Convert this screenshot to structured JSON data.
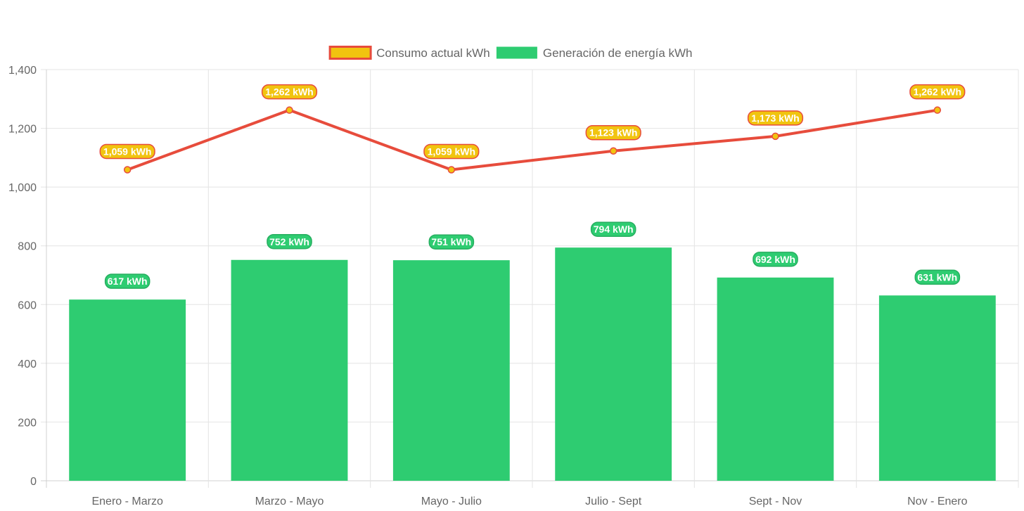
{
  "chart_data": {
    "type": "bar",
    "categories": [
      "Enero - Marzo",
      "Marzo - Mayo",
      "Mayo - Julio",
      "Julio - Sept",
      "Sept - Nov",
      "Nov - Enero"
    ],
    "series": [
      {
        "name": "Consumo actual kWh",
        "type": "line",
        "values": [
          1059,
          1262,
          1059,
          1123,
          1173,
          1262
        ],
        "labels": [
          "1,059 kWh",
          "1,262 kWh",
          "1,059 kWh",
          "1,123 kWh",
          "1,173 kWh",
          "1,262 kWh"
        ],
        "color": "#e74c3c",
        "fill_color": "#f1c40f"
      },
      {
        "name": "Generación de energía kWh",
        "type": "bar",
        "values": [
          617,
          752,
          751,
          794,
          692,
          631
        ],
        "labels": [
          "617 kWh",
          "752 kWh",
          "751 kWh",
          "794 kWh",
          "692 kWh",
          "631 kWh"
        ],
        "color": "#2ecc71"
      }
    ],
    "yticks": [
      "0",
      "200",
      "400",
      "600",
      "800",
      "1,000",
      "1,200",
      "1,400"
    ],
    "ylim": [
      0,
      1400
    ],
    "grid": true,
    "legend": "top-center"
  }
}
